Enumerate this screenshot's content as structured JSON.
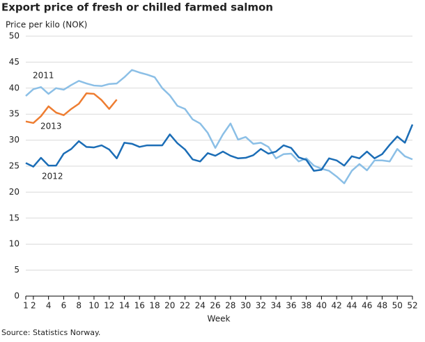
{
  "chart_data": {
    "type": "line",
    "title": "Export price of fresh or chilled farmed salmon",
    "y_label": "Price per kilo (NOK)",
    "x_label": "Week",
    "source": "Source: Statistics Norway.",
    "x": [
      1,
      2,
      3,
      4,
      5,
      6,
      7,
      8,
      9,
      10,
      11,
      12,
      13,
      14,
      15,
      16,
      17,
      18,
      19,
      20,
      21,
      22,
      23,
      24,
      25,
      26,
      27,
      28,
      29,
      30,
      31,
      32,
      33,
      34,
      35,
      36,
      37,
      38,
      39,
      40,
      41,
      42,
      43,
      44,
      45,
      46,
      47,
      48,
      49,
      50,
      51,
      52
    ],
    "xlim": [
      1,
      52
    ],
    "xticks": [
      1,
      2,
      4,
      6,
      8,
      10,
      12,
      14,
      16,
      18,
      20,
      22,
      24,
      26,
      28,
      30,
      32,
      34,
      36,
      38,
      40,
      42,
      44,
      46,
      48,
      50,
      52
    ],
    "ylim": [
      0,
      50
    ],
    "yticks": [
      0,
      5,
      10,
      15,
      20,
      25,
      30,
      35,
      40,
      45,
      50
    ],
    "grid": true,
    "series": [
      {
        "name": "2011",
        "color": "#8bbfe6",
        "values": [
          38.5,
          39.8,
          40.2,
          38.9,
          40.0,
          39.7,
          40.6,
          41.4,
          40.9,
          40.5,
          40.4,
          40.8,
          40.9,
          42.1,
          43.5,
          43.0,
          42.6,
          42.1,
          40.0,
          38.6,
          36.6,
          36.0,
          34.0,
          33.2,
          31.4,
          28.5,
          31.1,
          33.2,
          30.1,
          30.6,
          29.3,
          29.5,
          28.7,
          26.5,
          27.3,
          27.4,
          25.9,
          26.5,
          25.1,
          24.5,
          24.1,
          23.0,
          21.7,
          24.1,
          25.4,
          24.2,
          26.1,
          26.1,
          25.9,
          28.3,
          26.9,
          26.3
        ]
      },
      {
        "name": "2013",
        "color": "#ee7d31",
        "values": [
          33.6,
          33.3,
          34.6,
          36.5,
          35.3,
          34.8,
          36.0,
          37.0,
          39.0,
          38.9,
          37.7,
          36.0,
          37.8,
          null,
          null,
          null,
          null,
          null,
          null,
          null,
          null,
          null,
          null,
          null,
          null,
          null,
          null,
          null,
          null,
          null,
          null,
          null,
          null,
          null,
          null,
          null,
          null,
          null,
          null,
          null,
          null,
          null,
          null,
          null,
          null,
          null,
          null,
          null,
          null,
          null,
          null,
          null
        ]
      },
      {
        "name": "2012",
        "color": "#1b6db6",
        "values": [
          25.6,
          24.9,
          26.6,
          25.1,
          25.1,
          27.4,
          28.3,
          29.8,
          28.7,
          28.6,
          29.0,
          28.2,
          26.5,
          29.5,
          29.3,
          28.7,
          29.0,
          29.0,
          29.0,
          31.1,
          29.4,
          28.2,
          26.3,
          25.9,
          27.5,
          27.0,
          27.8,
          27.0,
          26.5,
          26.6,
          27.1,
          28.3,
          27.4,
          27.8,
          29.0,
          28.5,
          26.7,
          26.2,
          24.1,
          24.3,
          26.5,
          26.1,
          25.1,
          26.9,
          26.5,
          27.8,
          26.5,
          27.3,
          29.1,
          30.7,
          29.5,
          33.0
        ]
      }
    ]
  }
}
